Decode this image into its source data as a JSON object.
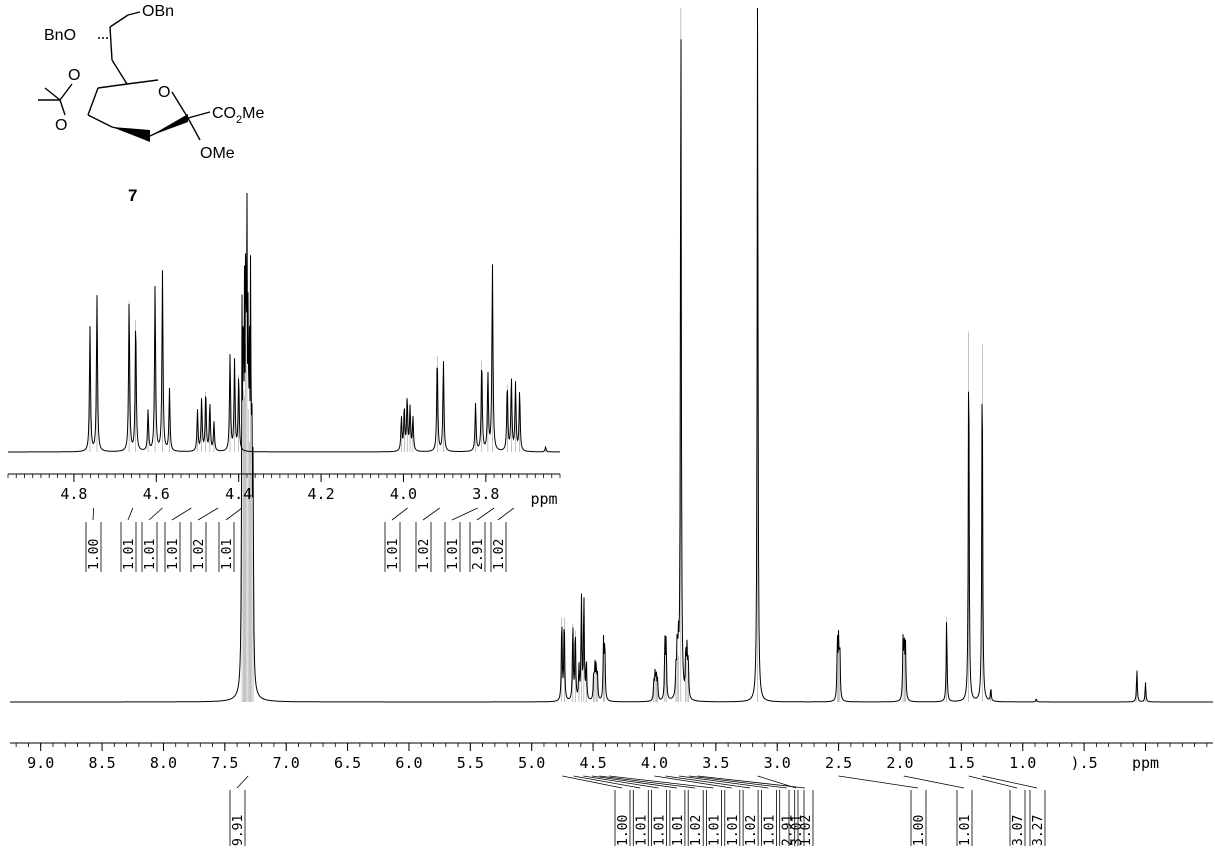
{
  "chart_data": [
    {
      "type": "line",
      "title": "",
      "xlabel": "ppm",
      "xlim": [
        9.25,
        -0.55
      ],
      "x_reversed": true,
      "ticks_x": [
        {
          "v": 9.0,
          "label": "9.0"
        },
        {
          "v": 8.5,
          "label": "8.5"
        },
        {
          "v": 8.0,
          "label": "8.0"
        },
        {
          "v": 7.5,
          "label": "7.5"
        },
        {
          "v": 7.0,
          "label": "7.0"
        },
        {
          "v": 6.5,
          "label": "6.5"
        },
        {
          "v": 6.0,
          "label": "6.0"
        },
        {
          "v": 5.5,
          "label": "5.5"
        },
        {
          "v": 5.0,
          "label": "5.0"
        },
        {
          "v": 4.5,
          "label": "4.5"
        },
        {
          "v": 4.0,
          "label": "4.0"
        },
        {
          "v": 3.5,
          "label": "3.5"
        },
        {
          "v": 3.0,
          "label": "3.0"
        },
        {
          "v": 2.5,
          "label": "2.5"
        },
        {
          "v": 2.0,
          "label": "2.0"
        },
        {
          "v": 1.5,
          "label": "1.5"
        },
        {
          "v": 1.0,
          "label": "1.0"
        },
        {
          "v": 0.5,
          "label": ").5"
        },
        {
          "v": 0.0,
          "label": "ppm"
        }
      ],
      "peaks": [
        {
          "x": 7.36,
          "y": 0.52
        },
        {
          "x": 7.35,
          "y": 0.48
        },
        {
          "x": 7.34,
          "y": 0.47
        },
        {
          "x": 7.33,
          "y": 0.55
        },
        {
          "x": 7.32,
          "y": 0.6
        },
        {
          "x": 7.31,
          "y": 0.45
        },
        {
          "x": 7.3,
          "y": 0.4
        },
        {
          "x": 7.29,
          "y": 0.55
        },
        {
          "x": 7.28,
          "y": 0.35
        },
        {
          "x": 7.27,
          "y": 0.3
        },
        {
          "x": 4.755,
          "y": 0.13
        },
        {
          "x": 4.735,
          "y": 0.13
        },
        {
          "x": 4.665,
          "y": 0.12
        },
        {
          "x": 4.645,
          "y": 0.11
        },
        {
          "x": 4.615,
          "y": 0.05
        },
        {
          "x": 4.595,
          "y": 0.16
        },
        {
          "x": 4.575,
          "y": 0.16
        },
        {
          "x": 4.555,
          "y": 0.06
        },
        {
          "x": 4.495,
          "y": 0.04
        },
        {
          "x": 4.485,
          "y": 0.05
        },
        {
          "x": 4.475,
          "y": 0.05
        },
        {
          "x": 4.465,
          "y": 0.04
        },
        {
          "x": 4.415,
          "y": 0.09
        },
        {
          "x": 4.405,
          "y": 0.09
        },
        {
          "x": 4.005,
          "y": 0.03
        },
        {
          "x": 3.995,
          "y": 0.04
        },
        {
          "x": 3.985,
          "y": 0.04
        },
        {
          "x": 3.975,
          "y": 0.03
        },
        {
          "x": 3.915,
          "y": 0.09
        },
        {
          "x": 3.905,
          "y": 0.09
        },
        {
          "x": 3.825,
          "y": 0.04
        },
        {
          "x": 3.815,
          "y": 0.08
        },
        {
          "x": 3.805,
          "y": 0.07
        },
        {
          "x": 3.785,
          "y": 1.1
        },
        {
          "x": 3.745,
          "y": 0.07
        },
        {
          "x": 3.735,
          "y": 0.07
        },
        {
          "x": 3.725,
          "y": 0.06
        },
        {
          "x": 3.16,
          "y": 1.1
        },
        {
          "x": 2.51,
          "y": 0.09
        },
        {
          "x": 2.5,
          "y": 0.09
        },
        {
          "x": 2.49,
          "y": 0.08
        },
        {
          "x": 1.975,
          "y": 0.09
        },
        {
          "x": 1.965,
          "y": 0.09
        },
        {
          "x": 1.955,
          "y": 0.08
        },
        {
          "x": 1.62,
          "y": 0.13
        },
        {
          "x": 1.44,
          "y": 0.57
        },
        {
          "x": 1.33,
          "y": 0.55
        },
        {
          "x": 1.26,
          "y": 0.02
        },
        {
          "x": 0.89,
          "y": 0.005
        },
        {
          "x": 0.07,
          "y": 0.05
        },
        {
          "x": 0.0,
          "y": 0.03
        }
      ],
      "integrals": [
        {
          "x": 7.31,
          "label": "9.91"
        },
        {
          "x": 4.75,
          "label": "1.00"
        },
        {
          "x": 4.66,
          "label": "1.01"
        },
        {
          "x": 4.58,
          "label": "1.01"
        },
        {
          "x": 4.51,
          "label": "1.01"
        },
        {
          "x": 4.45,
          "label": "1.02"
        },
        {
          "x": 4.37,
          "label": "1.01"
        },
        {
          "x": 4.0,
          "label": "1.01"
        },
        {
          "x": 3.91,
          "label": "1.02"
        },
        {
          "x": 3.8,
          "label": "1.01"
        },
        {
          "x": 3.72,
          "label": "2.91"
        },
        {
          "x": 3.65,
          "label": "1.02"
        },
        {
          "x": 3.16,
          "label": "3.01"
        },
        {
          "x": 2.5,
          "label": "1.00"
        },
        {
          "x": 1.97,
          "label": "1.01"
        },
        {
          "x": 1.44,
          "label": "3.07"
        },
        {
          "x": 1.33,
          "label": "3.27"
        }
      ]
    },
    {
      "type": "line",
      "title": "",
      "xlabel": "ppm",
      "xlim": [
        4.96,
        3.62
      ],
      "x_reversed": true,
      "ticks_x": [
        {
          "v": 4.8,
          "label": "4.8"
        },
        {
          "v": 4.6,
          "label": "4.6"
        },
        {
          "v": 4.4,
          "label": "4.4"
        },
        {
          "v": 4.2,
          "label": "4.2"
        },
        {
          "v": 4.0,
          "label": "4.0"
        },
        {
          "v": 3.8,
          "label": "3.8"
        }
      ],
      "peaks": [
        {
          "x": 4.761,
          "y": 0.52
        },
        {
          "x": 4.744,
          "y": 0.65
        },
        {
          "x": 4.666,
          "y": 0.63
        },
        {
          "x": 4.65,
          "y": 0.55
        },
        {
          "x": 4.62,
          "y": 0.17
        },
        {
          "x": 4.603,
          "y": 0.69
        },
        {
          "x": 4.585,
          "y": 0.75
        },
        {
          "x": 4.568,
          "y": 0.26
        },
        {
          "x": 4.5,
          "y": 0.17
        },
        {
          "x": 4.49,
          "y": 0.22
        },
        {
          "x": 4.48,
          "y": 0.25
        },
        {
          "x": 4.47,
          "y": 0.2
        },
        {
          "x": 4.46,
          "y": 0.12
        },
        {
          "x": 4.421,
          "y": 0.4
        },
        {
          "x": 4.41,
          "y": 0.38
        },
        {
          "x": 4.4,
          "y": 0.32
        },
        {
          "x": 4.005,
          "y": 0.14
        },
        {
          "x": 3.998,
          "y": 0.18
        },
        {
          "x": 3.991,
          "y": 0.22
        },
        {
          "x": 3.984,
          "y": 0.18
        },
        {
          "x": 3.977,
          "y": 0.14
        },
        {
          "x": 3.918,
          "y": 0.4
        },
        {
          "x": 3.903,
          "y": 0.38
        },
        {
          "x": 3.825,
          "y": 0.2
        },
        {
          "x": 3.81,
          "y": 0.38
        },
        {
          "x": 3.795,
          "y": 0.32
        },
        {
          "x": 3.784,
          "y": 0.78
        },
        {
          "x": 3.748,
          "y": 0.28
        },
        {
          "x": 3.738,
          "y": 0.3
        },
        {
          "x": 3.728,
          "y": 0.28
        },
        {
          "x": 3.718,
          "y": 0.25
        },
        {
          "x": 3.655,
          "y": 0.02
        }
      ],
      "integrals": [
        {
          "x": 4.752,
          "label": "1.00"
        },
        {
          "x": 4.657,
          "label": "1.01"
        },
        {
          "x": 4.585,
          "label": "1.01"
        },
        {
          "x": 4.515,
          "label": "1.01"
        },
        {
          "x": 4.45,
          "label": "1.02"
        },
        {
          "x": 4.392,
          "label": "1.01"
        },
        {
          "x": 3.99,
          "label": "1.01"
        },
        {
          "x": 3.912,
          "label": "1.02"
        },
        {
          "x": 3.82,
          "label": "1.01"
        },
        {
          "x": 3.78,
          "label": "2.91"
        },
        {
          "x": 3.732,
          "label": "1.02"
        }
      ]
    }
  ],
  "structure": {
    "compound_number": "7",
    "labels": {
      "obn_top": "OBn",
      "bno": "BnO",
      "ring_o": "O",
      "acetonide_o1": "O",
      "acetonide_o2": "O",
      "ester_main": "CO",
      "ester_sub": "2",
      "ester_tail": "Me",
      "ome": "OMe"
    }
  }
}
